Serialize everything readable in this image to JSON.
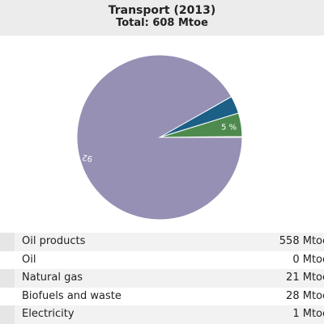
{
  "header": {
    "title": "Transport (2013)",
    "subtitle": "Total: 608 Mtoe"
  },
  "colors": {
    "oil_products": "#9690b4",
    "oil": "#c0c0c0",
    "natural_gas": "#1c5f87",
    "biofuels_and_waste": "#4e8a4e",
    "electricity": "#a4bcd6"
  },
  "chart_data": {
    "type": "pie",
    "title": "Transport (2013)",
    "subtitle": "Total: 608 Mtoe",
    "categories": [
      "Oil products",
      "Oil",
      "Natural gas",
      "Biofuels and waste",
      "Electricity"
    ],
    "values": [
      558,
      0,
      21,
      28,
      1
    ],
    "units": "Mtoe",
    "slice_labels": [
      "92 %",
      "",
      "",
      "5 %",
      ""
    ]
  },
  "table": {
    "rows": [
      {
        "label": "Oil products",
        "value": "558 Mtoe"
      },
      {
        "label": "Oil",
        "value": "0 Mtoe"
      },
      {
        "label": "Natural gas",
        "value": "21 Mtoe"
      },
      {
        "label": "Biofuels and waste",
        "value": "28 Mtoe"
      },
      {
        "label": "Electricity",
        "value": "1 Mtoe"
      }
    ]
  }
}
